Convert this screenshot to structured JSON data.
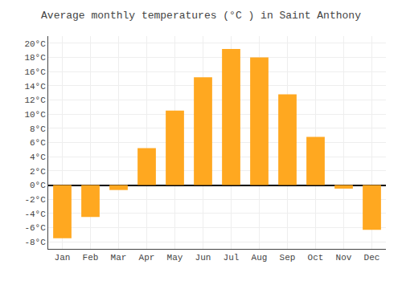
{
  "chart_data": {
    "type": "bar",
    "title": "Average monthly temperatures (°C ) in Saint Anthony",
    "categories": [
      "Jan",
      "Feb",
      "Mar",
      "Apr",
      "May",
      "Jun",
      "Jul",
      "Aug",
      "Sep",
      "Oct",
      "Nov",
      "Dec"
    ],
    "values": [
      -7.5,
      -4.5,
      -0.7,
      5.2,
      10.5,
      15.2,
      19.2,
      18.0,
      12.8,
      6.8,
      -0.5,
      -6.3
    ],
    "color": "#FFA820",
    "ylim": [
      -9,
      21
    ],
    "yticks": [
      {
        "value": -8,
        "label": "-8°C"
      },
      {
        "value": -6,
        "label": "-6°C"
      },
      {
        "value": -4,
        "label": "-4°C"
      },
      {
        "value": -2,
        "label": "-2°C"
      },
      {
        "value": 0,
        "label": "0°C"
      },
      {
        "value": 2,
        "label": "2°C"
      },
      {
        "value": 4,
        "label": "4°C"
      },
      {
        "value": 6,
        "label": "6°C"
      },
      {
        "value": 8,
        "label": "8°C"
      },
      {
        "value": 10,
        "label": "10°C"
      },
      {
        "value": 12,
        "label": "12°C"
      },
      {
        "value": 14,
        "label": "14°C"
      },
      {
        "value": 16,
        "label": "16°C"
      },
      {
        "value": 18,
        "label": "18°C"
      },
      {
        "value": 20,
        "label": "20°C"
      }
    ],
    "grid": true
  }
}
